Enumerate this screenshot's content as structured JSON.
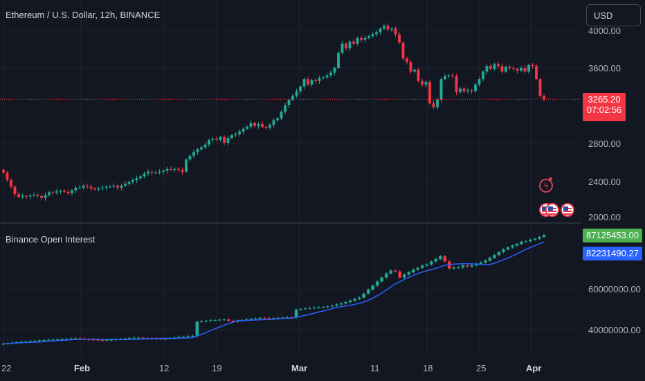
{
  "header": {
    "symbol_title": "Ethereum / U.S. Dollar, 12h, BINANCE",
    "currency_button": "USD"
  },
  "price_axis": {
    "labels": [
      "4000.00",
      "3600.00",
      "2800.00",
      "2400.00",
      "2000.00"
    ]
  },
  "price_current": {
    "value": "3265.20",
    "countdown": "07:02:56"
  },
  "indicator": {
    "title": "Binance Open Interest",
    "axis_labels": [
      "60000000.00",
      "40000000.00"
    ],
    "current_value": "87125453.00",
    "ma_value": "82231490.27"
  },
  "time_axis": {
    "labels": [
      "22",
      "Feb",
      "12",
      "19",
      "Mar",
      "11",
      "18",
      "25",
      "Apr"
    ]
  },
  "colors": {
    "up": "#22ab94",
    "down": "#f23645",
    "ma_line": "#2962ff",
    "oi_tag": "#4caf50",
    "ma_tag": "#2962ff",
    "background": "#131722"
  },
  "icons": [
    "lightning-event-icon",
    "us-flag-icon",
    "us-flag-icon",
    "us-flag-icon"
  ],
  "chart_data": [
    {
      "type": "candlestick",
      "title": "Ethereum / U.S. Dollar, 12h, BINANCE",
      "y_ticks": [
        2000,
        2400,
        2800,
        3600,
        4000
      ],
      "last_price": 3265.2,
      "close_series": [
        2480,
        2400,
        2330,
        2250,
        2220,
        2230,
        2225,
        2235,
        2240,
        2230,
        2210,
        2240,
        2270,
        2265,
        2280,
        2285,
        2275,
        2260,
        2290,
        2320,
        2320,
        2340,
        2330,
        2310,
        2300,
        2310,
        2320,
        2330,
        2330,
        2340,
        2320,
        2340,
        2360,
        2380,
        2400,
        2420,
        2440,
        2470,
        2490,
        2480,
        2480,
        2490,
        2500,
        2520,
        2510,
        2520,
        2510,
        2490,
        2620,
        2660,
        2700,
        2730,
        2750,
        2780,
        2830,
        2840,
        2830,
        2860,
        2800,
        2850,
        2880,
        2890,
        2920,
        2950,
        2970,
        3010,
        2980,
        3000,
        2970,
        2960,
        2990,
        3040,
        3060,
        3130,
        3200,
        3260,
        3300,
        3350,
        3400,
        3480,
        3420,
        3470,
        3460,
        3490,
        3500,
        3520,
        3550,
        3600,
        3760,
        3860,
        3810,
        3880,
        3860,
        3920,
        3900,
        3920,
        3940,
        3960,
        3980,
        4020,
        4050,
        4010,
        4020,
        3960,
        3870,
        3700,
        3660,
        3560,
        3580,
        3460,
        3420,
        3450,
        3220,
        3180,
        3260,
        3480,
        3510,
        3520,
        3510,
        3340,
        3380,
        3350,
        3360,
        3350,
        3420,
        3480,
        3560,
        3620,
        3590,
        3640,
        3620,
        3560,
        3610,
        3600,
        3590,
        3570,
        3600,
        3560,
        3630,
        3620,
        3480,
        3300,
        3265
      ]
    },
    {
      "type": "candlestick",
      "title": "Binance Open Interest",
      "y_ticks": [
        40000000,
        60000000
      ],
      "last_value": 87125453.0,
      "ma_last": 82231490.27,
      "close_series": [
        33000000,
        33300000,
        33500000,
        33800000,
        34000000,
        34100000,
        34300000,
        34500000,
        34700000,
        34800000,
        35000000,
        35100000,
        35200000,
        35300000,
        35400000,
        35600000,
        35700000,
        35500000,
        35300000,
        35100000,
        35000000,
        34800000,
        34700000,
        34900000,
        35000000,
        35200000,
        35400000,
        35600000,
        35800000,
        36000000,
        36000000,
        35800000,
        35700000,
        35600000,
        35500000,
        35300000,
        35500000,
        35800000,
        36100000,
        36400000,
        36500000,
        36800000,
        37000000,
        44000000,
        44200000,
        44500000,
        44700000,
        44800000,
        45000000,
        45100000,
        44500000,
        44000000,
        44400000,
        44800000,
        45100000,
        45300000,
        45600000,
        45900000,
        45800000,
        45600000,
        45700000,
        45900000,
        46000000,
        46200000,
        46000000,
        50000000,
        50300000,
        50600000,
        50800000,
        51000000,
        51200000,
        51300000,
        51600000,
        52000000,
        52600000,
        53100000,
        53800000,
        54500000,
        55300000,
        56000000,
        58000000,
        60000000,
        62000000,
        64000000,
        66000000,
        68000000,
        69500000,
        69000000,
        66000000,
        67500000,
        68600000,
        69900000,
        70800000,
        71900000,
        72500000,
        74000000,
        75200000,
        76600000,
        74000000,
        70500000,
        71000000,
        71000000,
        72000000,
        71500000,
        72100000,
        72800000,
        73500000,
        74400000,
        75800000,
        77200000,
        78600000,
        80000000,
        81000000,
        81900000,
        82700000,
        83800000,
        84100000,
        84800000,
        85300000,
        86200000,
        87125453
      ]
    }
  ]
}
